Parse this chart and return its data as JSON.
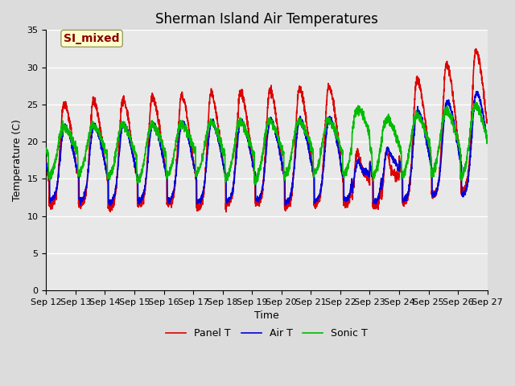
{
  "title": "Sherman Island Air Temperatures",
  "xlabel": "Time",
  "ylabel": "Temperature (C)",
  "xlim_days": [
    12,
    27
  ],
  "ylim": [
    0,
    35
  ],
  "yticks": [
    0,
    5,
    10,
    15,
    20,
    25,
    30,
    35
  ],
  "xtick_labels": [
    "Sep 12",
    "Sep 13",
    "Sep 14",
    "Sep 15",
    "Sep 16",
    "Sep 17",
    "Sep 18",
    "Sep 19",
    "Sep 20",
    "Sep 21",
    "Sep 22",
    "Sep 23",
    "Sep 24",
    "Sep 25",
    "Sep 26",
    "Sep 27"
  ],
  "annotation_text": "SI_mixed",
  "annotation_color": "#8B0000",
  "annotation_bg": "#FFFFCC",
  "annotation_edge": "#999966",
  "line_colors": [
    "#DD0000",
    "#0000DD",
    "#00BB00"
  ],
  "line_labels": [
    "Panel T",
    "Air T",
    "Sonic T"
  ],
  "line_width": 1.2,
  "fig_bg": "#DCDCDC",
  "plot_bg": "#E8E8E8",
  "grid_color": "#FFFFFF",
  "title_fontsize": 12,
  "label_fontsize": 9,
  "tick_fontsize": 8,
  "legend_fontsize": 9
}
